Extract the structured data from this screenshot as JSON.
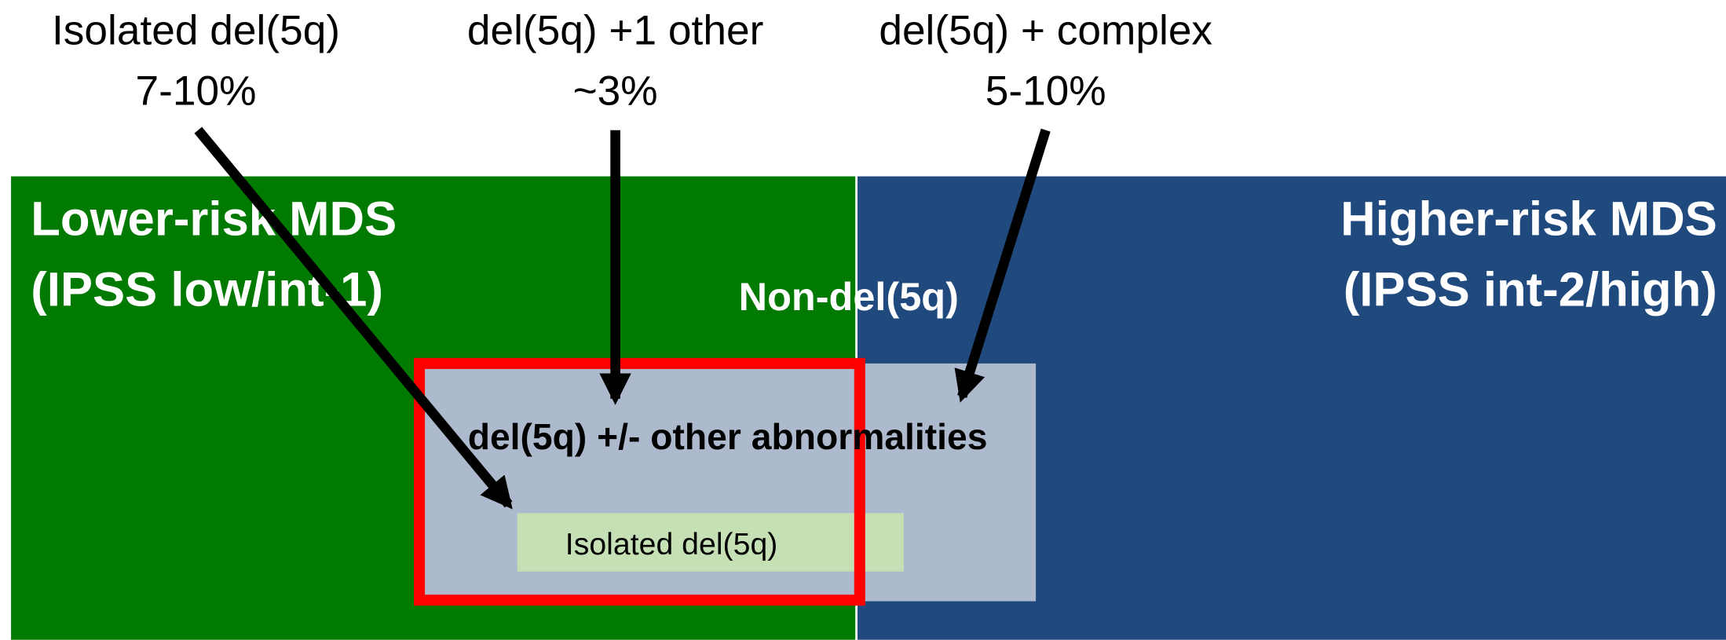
{
  "top_labels": [
    {
      "label": "Isolated del(5q)",
      "percent": "7-10%"
    },
    {
      "label": "del(5q) +1 other",
      "percent": "~3%"
    },
    {
      "label": "del(5q) + complex",
      "percent": "5-10%"
    }
  ],
  "lower_risk": {
    "title": "Lower-risk MDS",
    "subtitle": "(IPSS low/int-1)"
  },
  "higher_risk": {
    "title": "Higher-risk MDS",
    "subtitle": "(IPSS int-2/high)"
  },
  "non_del_label": "Non-del(5q)",
  "del5q_box": {
    "label": "del(5q) +/- other abnormalities"
  },
  "isolated_box": {
    "label": "Isolated del(5q)"
  }
}
